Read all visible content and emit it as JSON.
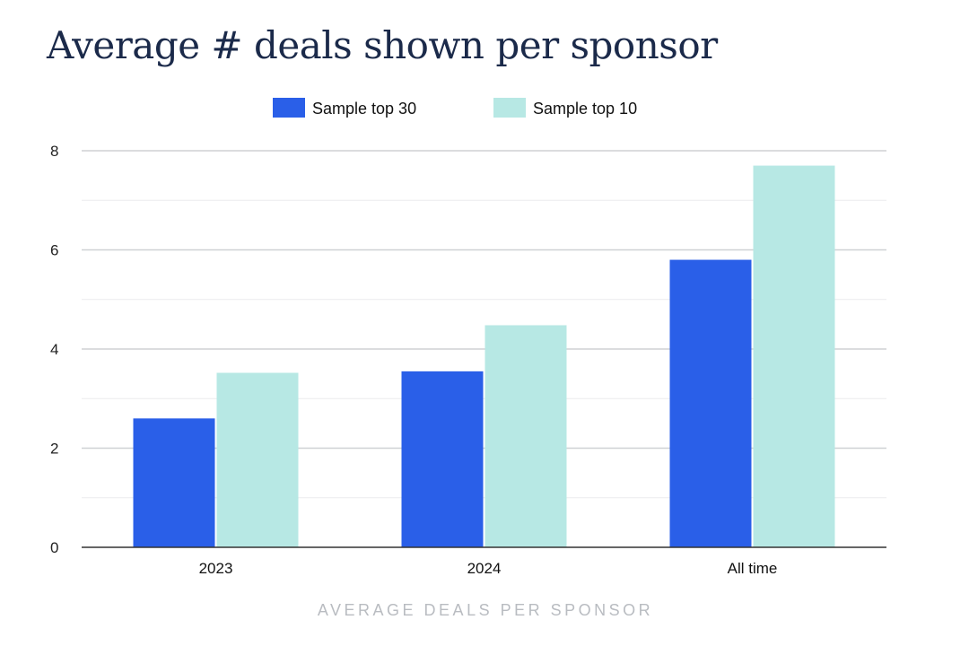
{
  "chart_data": {
    "type": "bar",
    "title": "Average # deals shown per sponsor",
    "xlabel": "AVERAGE DEALS PER SPONSOR",
    "ylabel": "",
    "categories": [
      "2023",
      "2024",
      "All time"
    ],
    "series": [
      {
        "name": "Sample top 30",
        "color": "#2a5fe8",
        "values": [
          2.6,
          3.55,
          5.8
        ]
      },
      {
        "name": "Sample top 10",
        "color": "#b7e8e4",
        "values": [
          3.52,
          4.48,
          7.7
        ]
      }
    ],
    "ylim": [
      0,
      8
    ],
    "yticks": [
      0,
      2,
      4,
      6,
      8
    ],
    "grid": true,
    "legend": "top-center"
  }
}
